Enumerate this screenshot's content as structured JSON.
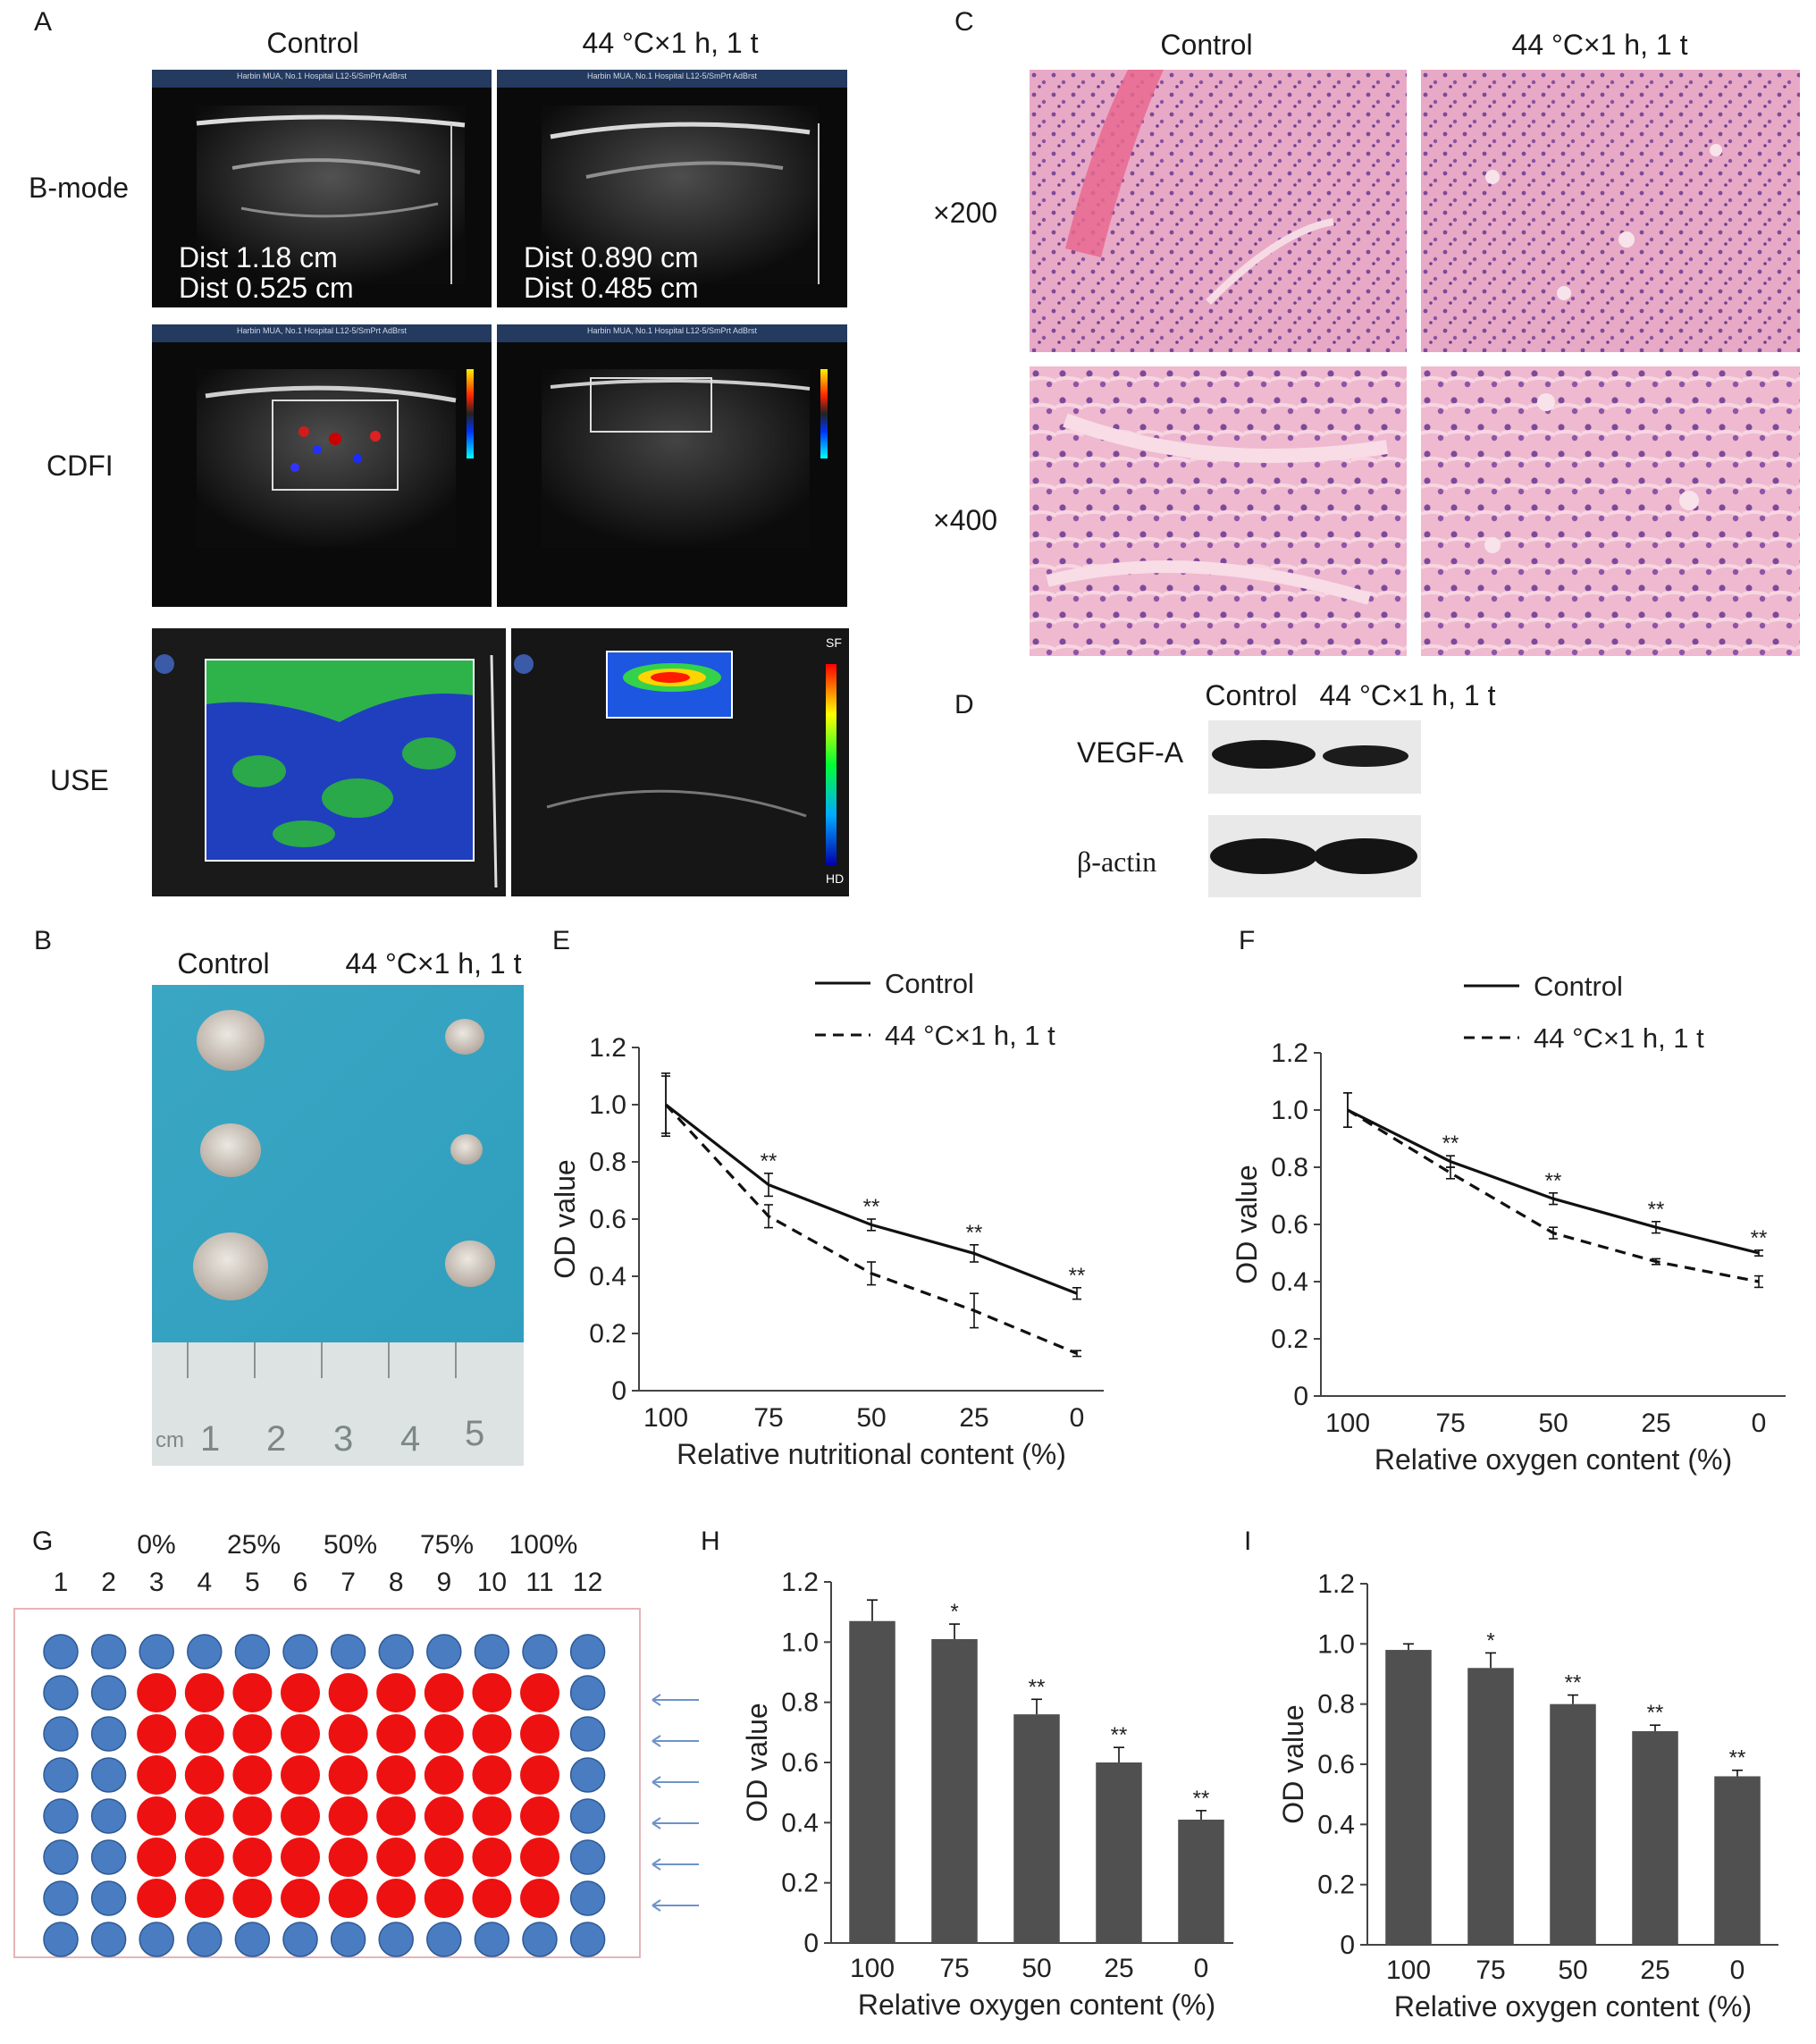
{
  "panels": {
    "A": {
      "label": "A",
      "col_headers": [
        "Control",
        "44 °C×1 h, 1 t"
      ],
      "row_labels": [
        "B-mode",
        "CDFI",
        "USE"
      ],
      "ultrasound_header_text": "Harbin MUA, No.1 Hospital L12-5/SmPrt AdBrst",
      "bmode_measurements": {
        "control": [
          "Dist  1.18 cm",
          "Dist 0.525 cm"
        ],
        "treated": [
          "Dist 0.890 cm",
          "Dist 0.485 cm"
        ]
      },
      "elasto_scale_top": "SF",
      "elasto_scale_bottom": "HD"
    },
    "B": {
      "label": "B",
      "col_headers": [
        "Control",
        "44 °C×1 h, 1 t"
      ],
      "ruler_unit": "cm",
      "ruler_numbers": [
        "1",
        "2",
        "3",
        "4",
        "5"
      ]
    },
    "C": {
      "label": "C",
      "col_headers": [
        "Control",
        "44 °C×1 h, 1 t"
      ],
      "row_labels": [
        "×200",
        "×400"
      ]
    },
    "D": {
      "label": "D",
      "col_headers": [
        "Control",
        "44 °C×1 h, 1 t"
      ],
      "row_labels": [
        "VEGF-A",
        "β-actin"
      ]
    },
    "E": {
      "label": "E"
    },
    "F": {
      "label": "F"
    },
    "G": {
      "label": "G",
      "column_numbers": [
        "1",
        "2",
        "3",
        "4",
        "5",
        "6",
        "7",
        "8",
        "9",
        "10",
        "11",
        "12"
      ],
      "percent_labels": [
        "0%",
        "25%",
        "50%",
        "75%",
        "100%"
      ],
      "colors": {
        "outer_wells": "#4a7cc1",
        "treated_wells": "#ee1111",
        "arrow": "#6d93c9"
      }
    },
    "H": {
      "label": "H"
    },
    "I": {
      "label": "I"
    }
  },
  "chart_data": [
    {
      "id": "E",
      "type": "line",
      "x": [
        100,
        75,
        50,
        25,
        0
      ],
      "xlabel": "Relative nutritional content (%)",
      "ylabel": "OD value",
      "ylim": [
        0,
        1.2
      ],
      "yticks": [
        "0",
        "0.2",
        "0.4",
        "0.6",
        "0.8",
        "1.0",
        "1.2"
      ],
      "legend_position": "top-right",
      "series": [
        {
          "name": "Control",
          "style": "solid",
          "values": [
            1.0,
            0.72,
            0.58,
            0.48,
            0.34
          ],
          "errors": [
            0.11,
            0.04,
            0.02,
            0.03,
            0.02
          ]
        },
        {
          "name": "44 °C×1 h, 1 t",
          "style": "dashed",
          "values": [
            1.0,
            0.61,
            0.41,
            0.28,
            0.13
          ],
          "errors": [
            0.1,
            0.04,
            0.04,
            0.06,
            0.01
          ]
        }
      ],
      "annotations": [
        "**",
        "**",
        "**",
        "**"
      ]
    },
    {
      "id": "F",
      "type": "line",
      "x": [
        100,
        75,
        50,
        25,
        0
      ],
      "xlabel": "Relative oxygen content (%)",
      "ylabel": "OD value",
      "ylim": [
        0,
        1.2
      ],
      "yticks": [
        "0",
        "0.2",
        "0.4",
        "0.6",
        "0.8",
        "1.0",
        "1.2"
      ],
      "legend_position": "top-right",
      "series": [
        {
          "name": "Control",
          "style": "solid",
          "values": [
            1.0,
            0.82,
            0.69,
            0.59,
            0.5
          ],
          "errors": [
            0.06,
            0.02,
            0.02,
            0.02,
            0.01
          ]
        },
        {
          "name": "44 °C×1 h, 1 t",
          "style": "dashed",
          "values": [
            1.0,
            0.78,
            0.57,
            0.47,
            0.4
          ],
          "errors": [
            0.06,
            0.02,
            0.02,
            0.01,
            0.02
          ]
        }
      ],
      "annotations": [
        "**",
        "**",
        "**",
        "**"
      ]
    },
    {
      "id": "H",
      "type": "bar",
      "categories": [
        "100",
        "75",
        "50",
        "25",
        "0"
      ],
      "values": [
        1.07,
        1.01,
        0.76,
        0.6,
        0.41
      ],
      "errors": [
        0.07,
        0.05,
        0.05,
        0.05,
        0.03
      ],
      "annotations": [
        "",
        "*",
        "**",
        "**",
        "**"
      ],
      "xlabel": "Relative oxygen content (%)",
      "ylabel": "OD value",
      "ylim": [
        0,
        1.2
      ],
      "yticks": [
        "0",
        "0.2",
        "0.4",
        "0.6",
        "0.8",
        "1.0",
        "1.2"
      ],
      "bar_color": "#505050"
    },
    {
      "id": "I",
      "type": "bar",
      "categories": [
        "100",
        "75",
        "50",
        "25",
        "0"
      ],
      "values": [
        0.98,
        0.92,
        0.8,
        0.71,
        0.56
      ],
      "errors": [
        0.02,
        0.05,
        0.03,
        0.02,
        0.02
      ],
      "annotations": [
        "",
        "*",
        "**",
        "**",
        "**"
      ],
      "xlabel": "Relative oxygen content (%)",
      "ylabel": "OD value",
      "ylim": [
        0,
        1.2
      ],
      "yticks": [
        "0",
        "0.2",
        "0.4",
        "0.6",
        "0.8",
        "1.0",
        "1.2"
      ],
      "bar_color": "#505050"
    }
  ]
}
